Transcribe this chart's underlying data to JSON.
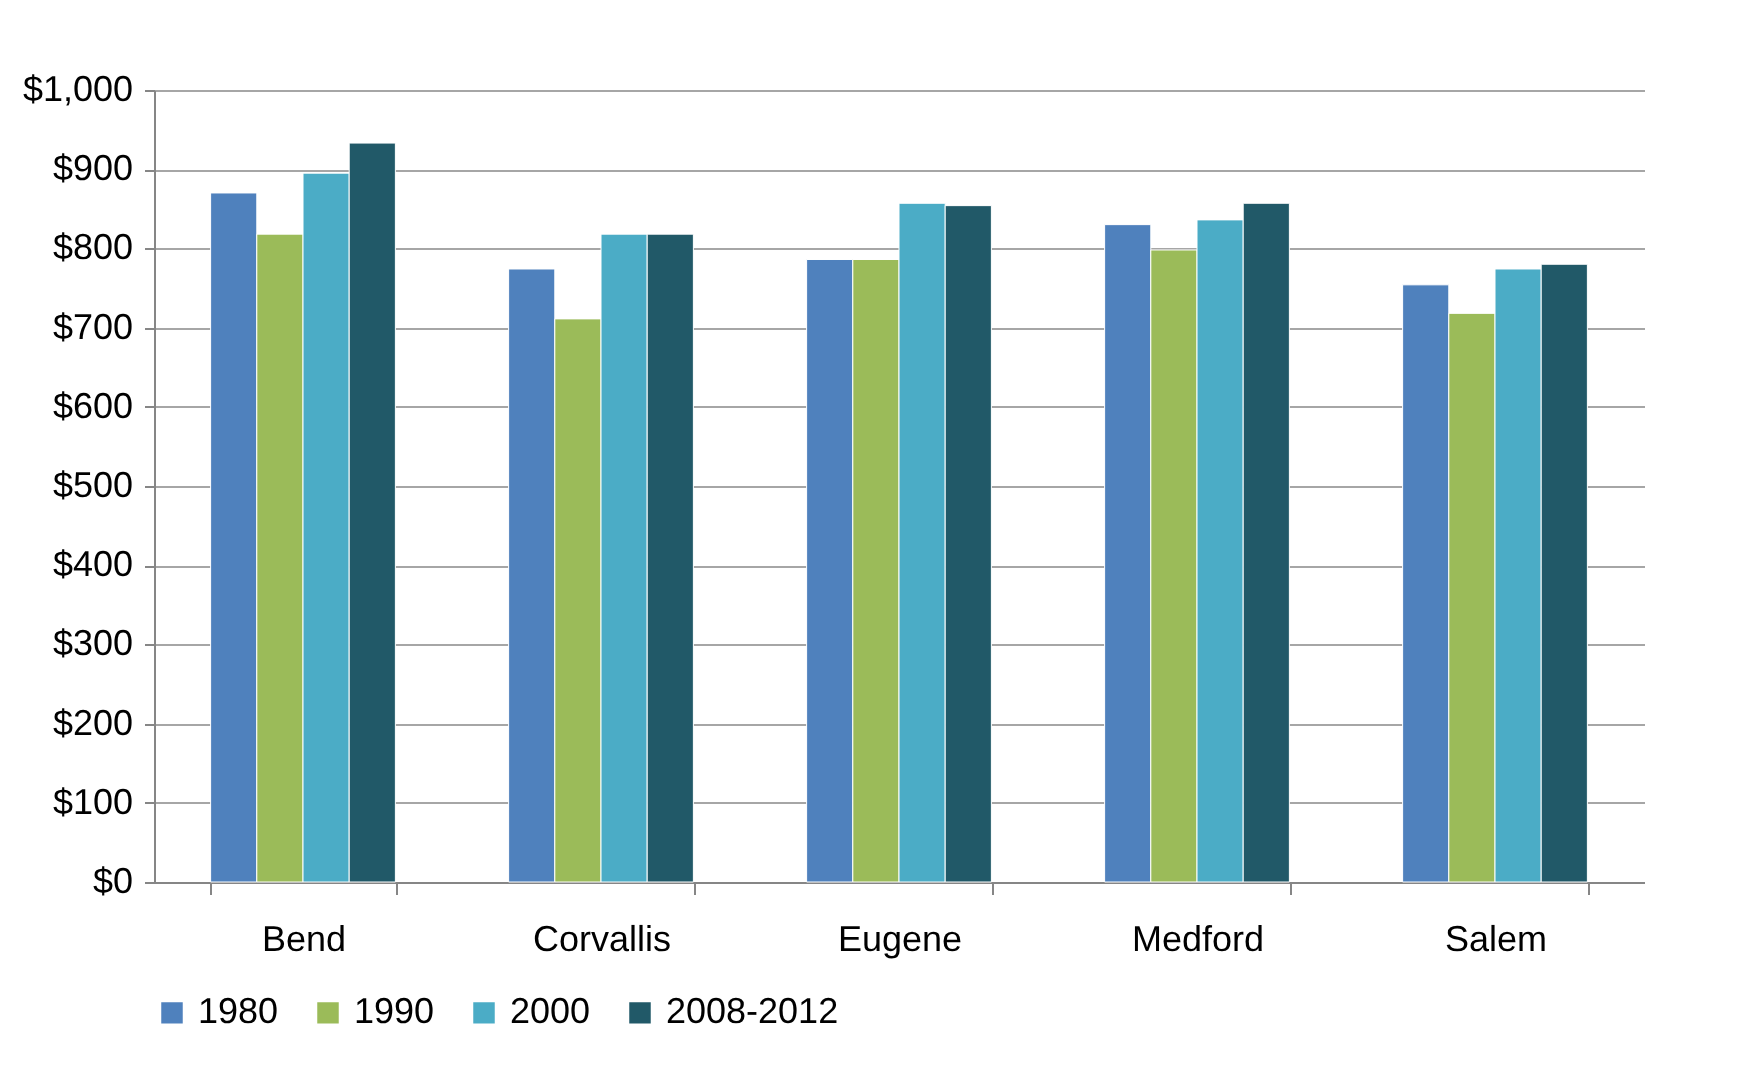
{
  "chart_data": {
    "type": "bar",
    "categories": [
      "Bend",
      "Corvallis",
      "Eugene",
      "Medford",
      "Salem"
    ],
    "series": [
      {
        "name": "1980",
        "color": "#4f81bd",
        "values": [
          870,
          774,
          786,
          830,
          754
        ]
      },
      {
        "name": "1990",
        "color": "#9bbb59",
        "values": [
          818,
          711,
          786,
          798,
          718
        ]
      },
      {
        "name": "2000",
        "color": "#4bacc6",
        "values": [
          895,
          818,
          857,
          836,
          774
        ]
      },
      {
        "name": "2008-2012",
        "color": "#215968",
        "values": [
          933,
          818,
          854,
          857,
          780
        ]
      }
    ],
    "ylim": [
      0,
      1000
    ],
    "yticks": [
      {
        "value": 0,
        "label": "$0"
      },
      {
        "value": 100,
        "label": "$100"
      },
      {
        "value": 200,
        "label": "$200"
      },
      {
        "value": 300,
        "label": "$300"
      },
      {
        "value": 400,
        "label": "$400"
      },
      {
        "value": 500,
        "label": "$500"
      },
      {
        "value": 600,
        "label": "$600"
      },
      {
        "value": 700,
        "label": "$700"
      },
      {
        "value": 800,
        "label": "$800"
      },
      {
        "value": 900,
        "label": "$900"
      },
      {
        "value": 1000,
        "label": "$1,000"
      }
    ],
    "grid": "y",
    "legend": "bottom"
  }
}
